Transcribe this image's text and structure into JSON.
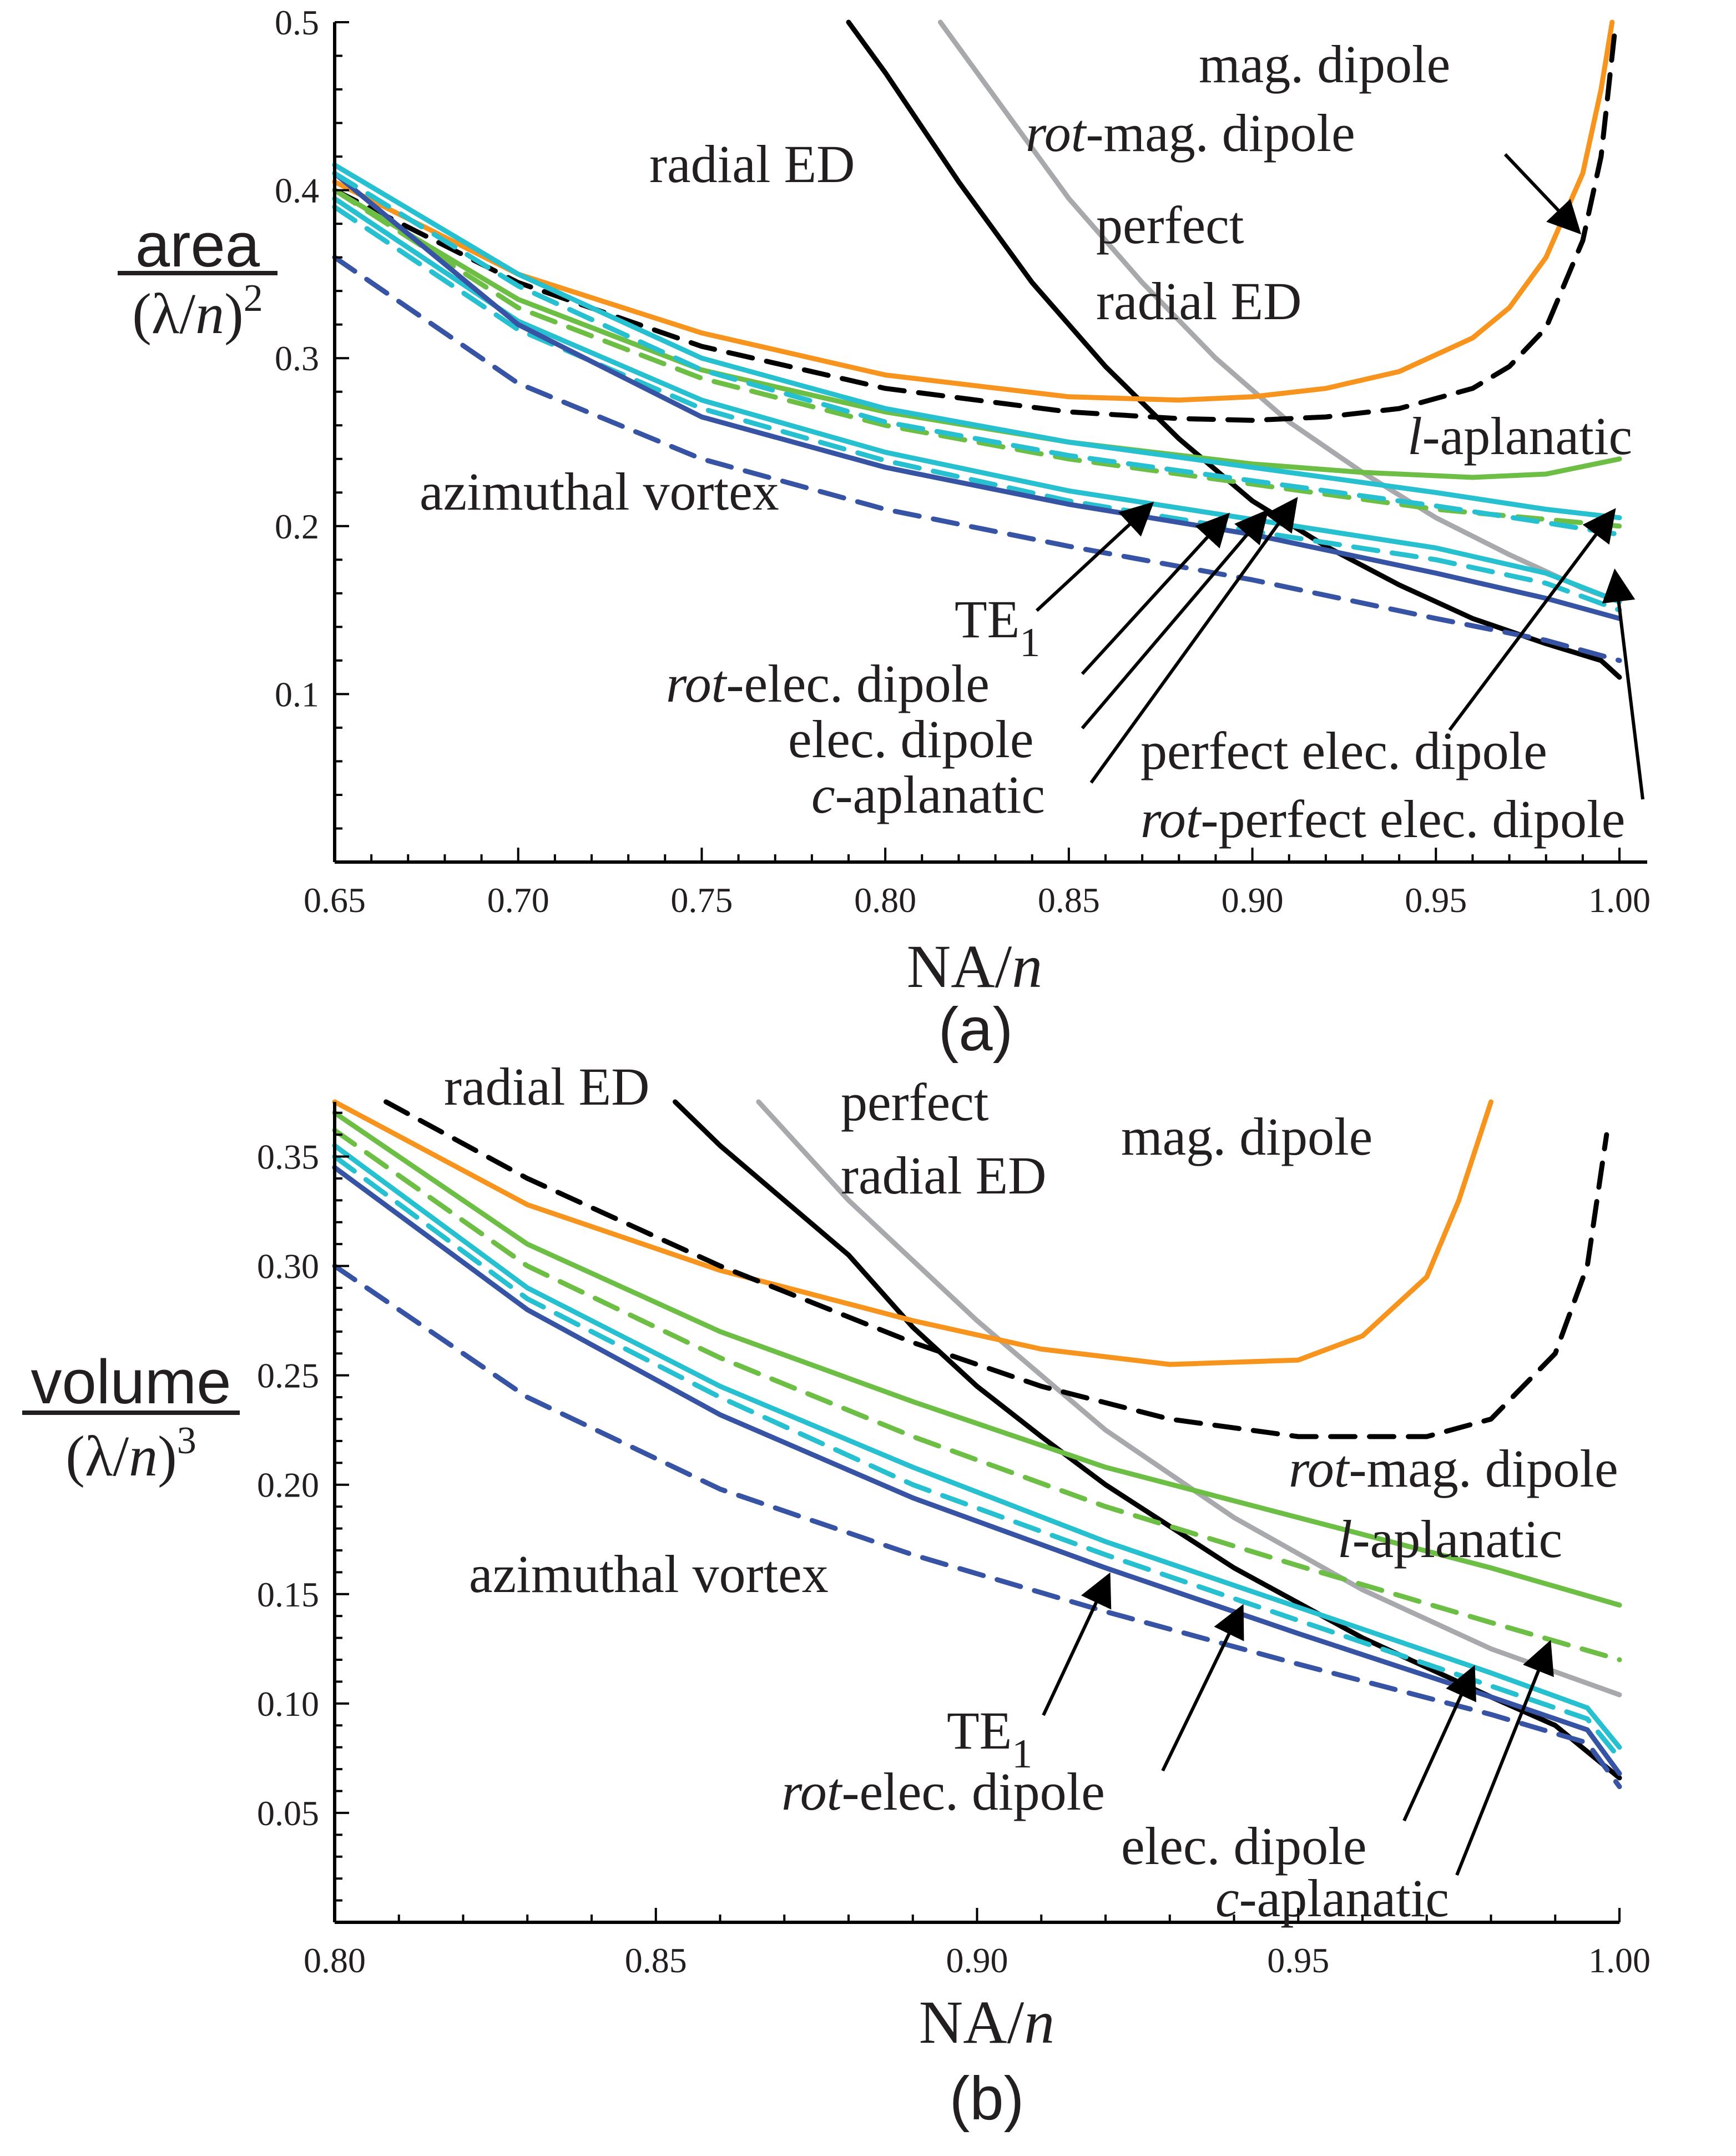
{
  "colors": {
    "radial_ed": "#000000",
    "perfect_radial_ed": "#a7a9ac",
    "mag_dipole": "#f7941d",
    "l_aplanatic": "#6cbe45",
    "c_aplanatic": "#6cbe45",
    "elec_dipole": "#27c0d0",
    "rot_elec_dipole": "#27c0d0",
    "te1": "#3753a4",
    "azimuthal_vortex": "#3753a4",
    "perfect_elec_dipole": "#27c0d0",
    "rot_perfect_elec_dipole": "#27c0d0"
  },
  "chart_data": [
    {
      "type": "line",
      "panel_label": "(a)",
      "title": "",
      "xlabel_main": "NA/",
      "xlabel_ital": "n",
      "ylabel_top": "area",
      "ylabel_bottom_pre": "(λ/",
      "ylabel_bottom_ital": "n",
      "ylabel_bottom_post": ")",
      "ylabel_bottom_exp": "2",
      "xlim": [
        0.65,
        1.0
      ],
      "ylim": [
        0.0,
        0.5
      ],
      "xticks": [
        0.65,
        0.7,
        0.75,
        0.8,
        0.85,
        0.9,
        0.95,
        1.0
      ],
      "xtick_labels": [
        "0.65",
        "0.70",
        "0.75",
        "0.80",
        "0.85",
        "0.90",
        "0.95",
        "1.00"
      ],
      "yticks": [
        0.1,
        0.2,
        0.3,
        0.4,
        0.5
      ],
      "ytick_labels": [
        "0.1",
        "0.2",
        "0.3",
        "0.4",
        "0.5"
      ],
      "series": [
        {
          "id": "radial_ed",
          "dashed": false,
          "x": [
            0.79,
            0.8,
            0.82,
            0.84,
            0.86,
            0.88,
            0.9,
            0.92,
            0.94,
            0.96,
            0.98,
            0.995,
            1.0
          ],
          "y": [
            0.5,
            0.47,
            0.405,
            0.345,
            0.295,
            0.252,
            0.215,
            0.188,
            0.165,
            0.145,
            0.13,
            0.12,
            0.11
          ]
        },
        {
          "id": "perfect_radial_ed",
          "dashed": false,
          "x": [
            0.815,
            0.83,
            0.85,
            0.87,
            0.89,
            0.91,
            0.93,
            0.95,
            0.97,
            0.99,
            1.0
          ],
          "y": [
            0.5,
            0.455,
            0.395,
            0.345,
            0.3,
            0.262,
            0.232,
            0.205,
            0.183,
            0.163,
            0.155
          ]
        },
        {
          "id": "mag_dipole",
          "dashed": false,
          "x": [
            0.65,
            0.7,
            0.75,
            0.8,
            0.85,
            0.88,
            0.9,
            0.92,
            0.94,
            0.96,
            0.97,
            0.98,
            0.99,
            0.995,
            0.998
          ],
          "y": [
            0.405,
            0.35,
            0.315,
            0.29,
            0.277,
            0.275,
            0.277,
            0.282,
            0.292,
            0.312,
            0.33,
            0.36,
            0.41,
            0.46,
            0.5
          ]
        },
        {
          "id": "rot_mag_dipole",
          "dashed": true,
          "x": [
            0.65,
            0.7,
            0.75,
            0.8,
            0.85,
            0.88,
            0.9,
            0.92,
            0.94,
            0.96,
            0.97,
            0.98,
            0.99,
            0.995,
            0.999
          ],
          "y": [
            0.4,
            0.345,
            0.307,
            0.282,
            0.268,
            0.264,
            0.263,
            0.265,
            0.27,
            0.282,
            0.295,
            0.318,
            0.37,
            0.42,
            0.5
          ]
        },
        {
          "id": "l_aplanatic",
          "dashed": false,
          "x": [
            0.65,
            0.7,
            0.75,
            0.8,
            0.85,
            0.9,
            0.93,
            0.96,
            0.98,
            1.0
          ],
          "y": [
            0.4,
            0.335,
            0.293,
            0.268,
            0.25,
            0.237,
            0.232,
            0.229,
            0.231,
            0.24
          ]
        },
        {
          "id": "c_aplanatic",
          "dashed": true,
          "x": [
            0.65,
            0.7,
            0.75,
            0.8,
            0.85,
            0.9,
            0.95,
            1.0
          ],
          "y": [
            0.4,
            0.33,
            0.288,
            0.26,
            0.24,
            0.225,
            0.21,
            0.2
          ]
        },
        {
          "id": "elec_dipole",
          "dashed": false,
          "x": [
            0.65,
            0.7,
            0.75,
            0.8,
            0.85,
            0.9,
            0.95,
            0.98,
            1.0
          ],
          "y": [
            0.395,
            0.322,
            0.275,
            0.244,
            0.221,
            0.204,
            0.187,
            0.172,
            0.155
          ]
        },
        {
          "id": "rot_elec_dipole",
          "dashed": true,
          "x": [
            0.65,
            0.7,
            0.75,
            0.8,
            0.85,
            0.9,
            0.95,
            0.98,
            1.0
          ],
          "y": [
            0.39,
            0.317,
            0.27,
            0.239,
            0.215,
            0.197,
            0.18,
            0.166,
            0.15
          ]
        },
        {
          "id": "te1",
          "dashed": false,
          "x": [
            0.65,
            0.7,
            0.75,
            0.8,
            0.85,
            0.9,
            0.95,
            0.98,
            1.0
          ],
          "y": [
            0.41,
            0.32,
            0.265,
            0.235,
            0.213,
            0.195,
            0.172,
            0.157,
            0.145
          ]
        },
        {
          "id": "azimuthal_vortex",
          "dashed": true,
          "x": [
            0.65,
            0.7,
            0.75,
            0.8,
            0.85,
            0.9,
            0.95,
            0.98,
            1.0
          ],
          "y": [
            0.36,
            0.285,
            0.24,
            0.21,
            0.188,
            0.168,
            0.145,
            0.132,
            0.12
          ]
        },
        {
          "id": "perfect_elec_dipole",
          "dashed": false,
          "x": [
            0.65,
            0.7,
            0.75,
            0.8,
            0.85,
            0.9,
            0.95,
            0.98,
            1.0
          ],
          "y": [
            0.415,
            0.35,
            0.3,
            0.27,
            0.25,
            0.235,
            0.22,
            0.21,
            0.205
          ]
        },
        {
          "id": "rot_perfect_elec_dipole",
          "dashed": true,
          "x": [
            0.65,
            0.7,
            0.75,
            0.8,
            0.85,
            0.9,
            0.95,
            0.98,
            1.0
          ],
          "y": [
            0.41,
            0.343,
            0.293,
            0.262,
            0.242,
            0.227,
            0.212,
            0.202,
            0.195
          ]
        }
      ],
      "annotations": [
        {
          "id": "radial-ed-label",
          "pre": "radial ED",
          "ital": "",
          "post": ""
        },
        {
          "id": "perfect-label",
          "pre": "perfect",
          "ital": "",
          "post": ""
        },
        {
          "id": "perfect-radial-ed-label",
          "pre": "radial ED",
          "ital": "",
          "post": ""
        },
        {
          "id": "mag-dipole-label",
          "pre": "mag. dipole",
          "ital": "",
          "post": ""
        },
        {
          "id": "rot-mag-dipole-label",
          "pre": "",
          "ital": "rot",
          "post": "-mag. dipole"
        },
        {
          "id": "l-aplanatic-label",
          "pre": "",
          "ital": "l",
          "post": "-aplanatic"
        },
        {
          "id": "azimuthal-vortex-label",
          "pre": "azimuthal vortex",
          "ital": "",
          "post": ""
        },
        {
          "id": "te1-label",
          "pre": "TE",
          "ital": "",
          "post": "",
          "sub": "1"
        },
        {
          "id": "rot-elec-dipole-label",
          "pre": "",
          "ital": "rot",
          "post": "-elec. dipole"
        },
        {
          "id": "elec-dipole-label",
          "pre": "elec. dipole",
          "ital": "",
          "post": ""
        },
        {
          "id": "c-aplanatic-label",
          "pre": "",
          "ital": "c",
          "post": "-aplanatic"
        },
        {
          "id": "perfect-elec-dipole-label",
          "pre": "perfect elec. dipole",
          "ital": "",
          "post": ""
        },
        {
          "id": "rot-perfect-elec-dipole-label",
          "pre": "",
          "ital": "rot",
          "post": "-perfect elec. dipole"
        }
      ]
    },
    {
      "type": "line",
      "panel_label": "(b)",
      "title": "",
      "xlabel_main": "NA/",
      "xlabel_ital": "n",
      "ylabel_top": "volume",
      "ylabel_bottom_pre": "(λ/",
      "ylabel_bottom_ital": "n",
      "ylabel_bottom_post": ")",
      "ylabel_bottom_exp": "3",
      "xlim": [
        0.8,
        1.0
      ],
      "ylim": [
        0.0,
        0.375
      ],
      "xticks": [
        0.8,
        0.85,
        0.9,
        0.95,
        1.0
      ],
      "xtick_labels": [
        "0.80",
        "0.85",
        "0.90",
        "0.95",
        "1.00"
      ],
      "yticks": [
        0.05,
        0.1,
        0.15,
        0.2,
        0.25,
        0.3,
        0.35
      ],
      "ytick_labels": [
        "0.05",
        "0.10",
        "0.15",
        "0.20",
        "0.25",
        "0.30",
        "0.35"
      ],
      "series": [
        {
          "id": "radial_ed",
          "dashed": false,
          "x": [
            0.853,
            0.86,
            0.87,
            0.88,
            0.89,
            0.9,
            0.91,
            0.92,
            0.94,
            0.96,
            0.98,
            0.99,
            1.0
          ],
          "y": [
            0.375,
            0.355,
            0.33,
            0.305,
            0.272,
            0.245,
            0.222,
            0.2,
            0.162,
            0.13,
            0.103,
            0.09,
            0.066
          ]
        },
        {
          "id": "perfect_radial_ed",
          "dashed": false,
          "x": [
            0.866,
            0.88,
            0.9,
            0.92,
            0.94,
            0.96,
            0.98,
            1.0
          ],
          "y": [
            0.375,
            0.33,
            0.275,
            0.225,
            0.185,
            0.152,
            0.125,
            0.104
          ]
        },
        {
          "id": "mag_dipole",
          "dashed": false,
          "x": [
            0.8,
            0.83,
            0.86,
            0.89,
            0.91,
            0.93,
            0.95,
            0.96,
            0.97,
            0.975,
            0.98
          ],
          "y": [
            0.375,
            0.328,
            0.298,
            0.275,
            0.262,
            0.255,
            0.257,
            0.268,
            0.295,
            0.33,
            0.375
          ]
        },
        {
          "id": "rot_mag_dipole",
          "dashed": true,
          "x": [
            0.808,
            0.83,
            0.86,
            0.89,
            0.91,
            0.93,
            0.95,
            0.97,
            0.98,
            0.99,
            0.995,
            0.998
          ],
          "y": [
            0.375,
            0.34,
            0.3,
            0.265,
            0.245,
            0.23,
            0.222,
            0.222,
            0.23,
            0.26,
            0.3,
            0.36
          ]
        },
        {
          "id": "l_aplanatic",
          "dashed": false,
          "x": [
            0.8,
            0.83,
            0.86,
            0.89,
            0.92,
            0.95,
            0.98,
            1.0
          ],
          "y": [
            0.37,
            0.31,
            0.27,
            0.238,
            0.208,
            0.185,
            0.162,
            0.145
          ]
        },
        {
          "id": "c_aplanatic",
          "dashed": true,
          "x": [
            0.8,
            0.83,
            0.86,
            0.89,
            0.92,
            0.95,
            0.98,
            1.0
          ],
          "y": [
            0.362,
            0.3,
            0.258,
            0.222,
            0.19,
            0.163,
            0.137,
            0.12
          ]
        },
        {
          "id": "elec_dipole",
          "dashed": false,
          "x": [
            0.8,
            0.83,
            0.86,
            0.89,
            0.92,
            0.95,
            0.98,
            0.995,
            1.0
          ],
          "y": [
            0.355,
            0.29,
            0.245,
            0.208,
            0.174,
            0.144,
            0.114,
            0.098,
            0.08
          ]
        },
        {
          "id": "rot_elec_dipole",
          "dashed": true,
          "x": [
            0.8,
            0.83,
            0.86,
            0.89,
            0.92,
            0.95,
            0.98,
            0.995,
            1.0
          ],
          "y": [
            0.35,
            0.285,
            0.24,
            0.2,
            0.168,
            0.138,
            0.108,
            0.093,
            0.075
          ]
        },
        {
          "id": "te1",
          "dashed": false,
          "x": [
            0.8,
            0.83,
            0.86,
            0.89,
            0.92,
            0.95,
            0.98,
            0.995,
            1.0
          ],
          "y": [
            0.345,
            0.28,
            0.232,
            0.194,
            0.162,
            0.132,
            0.103,
            0.088,
            0.068
          ]
        },
        {
          "id": "azimuthal_vortex",
          "dashed": true,
          "x": [
            0.8,
            0.83,
            0.86,
            0.89,
            0.92,
            0.95,
            0.98,
            0.995,
            1.0
          ],
          "y": [
            0.3,
            0.24,
            0.198,
            0.168,
            0.142,
            0.118,
            0.095,
            0.082,
            0.062
          ]
        }
      ],
      "annotations": [
        {
          "id": "radial-ed-label",
          "pre": "radial ED",
          "ital": "",
          "post": ""
        },
        {
          "id": "perfect-label",
          "pre": "perfect",
          "ital": "",
          "post": ""
        },
        {
          "id": "perfect-radial-ed-label",
          "pre": "radial ED",
          "ital": "",
          "post": ""
        },
        {
          "id": "mag-dipole-label",
          "pre": "mag. dipole",
          "ital": "",
          "post": ""
        },
        {
          "id": "rot-mag-dipole-label",
          "pre": "",
          "ital": "rot",
          "post": "-mag. dipole"
        },
        {
          "id": "l-aplanatic-label",
          "pre": "",
          "ital": "l",
          "post": "-aplanatic"
        },
        {
          "id": "azimuthal-vortex-label",
          "pre": "azimuthal vortex",
          "ital": "",
          "post": ""
        },
        {
          "id": "te1-label",
          "pre": "TE",
          "ital": "",
          "post": "",
          "sub": "1"
        },
        {
          "id": "rot-elec-dipole-label",
          "pre": "",
          "ital": "rot",
          "post": "-elec. dipole"
        },
        {
          "id": "elec-dipole-label",
          "pre": "elec. dipole",
          "ital": "",
          "post": ""
        },
        {
          "id": "c-aplanatic-label",
          "pre": "",
          "ital": "c",
          "post": "-aplanatic"
        }
      ]
    }
  ]
}
